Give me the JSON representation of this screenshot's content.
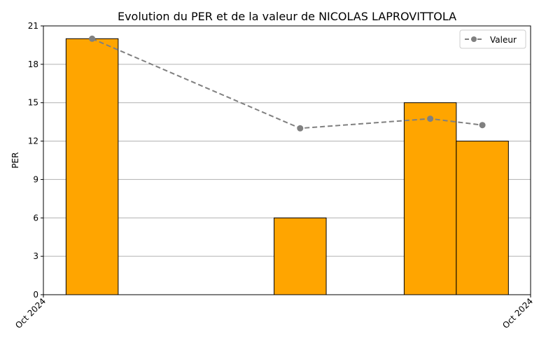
{
  "chart_data": {
    "type": "bar",
    "title": "Evolution du PER et de la valeur de NICOLAS LAPROVITTOLA",
    "xlabel": "",
    "ylabel": "PER",
    "ylim": [
      0,
      21
    ],
    "yticks": [
      0,
      3,
      6,
      9,
      12,
      15,
      18,
      21
    ],
    "xticks": [
      "Oct 2024",
      "Oct 2024"
    ],
    "grid": "y",
    "legend": "top-right",
    "bar_color": "#FFA500",
    "bar_edge_color": "#000000",
    "line_color": "#808080",
    "bars": [
      {
        "x": 0.1,
        "value": 20
      },
      {
        "x": 0.527,
        "value": 6
      },
      {
        "x": 0.794,
        "value": 15
      },
      {
        "x": 0.901,
        "value": 12
      }
    ],
    "series": [
      {
        "name": "Valeur",
        "style": "dashed-line-with-circle-markers",
        "points": [
          {
            "x": 0.1,
            "y": 20.0
          },
          {
            "x": 0.527,
            "y": 13.0
          },
          {
            "x": 0.794,
            "y": 13.75
          },
          {
            "x": 0.901,
            "y": 13.25
          }
        ]
      }
    ]
  }
}
